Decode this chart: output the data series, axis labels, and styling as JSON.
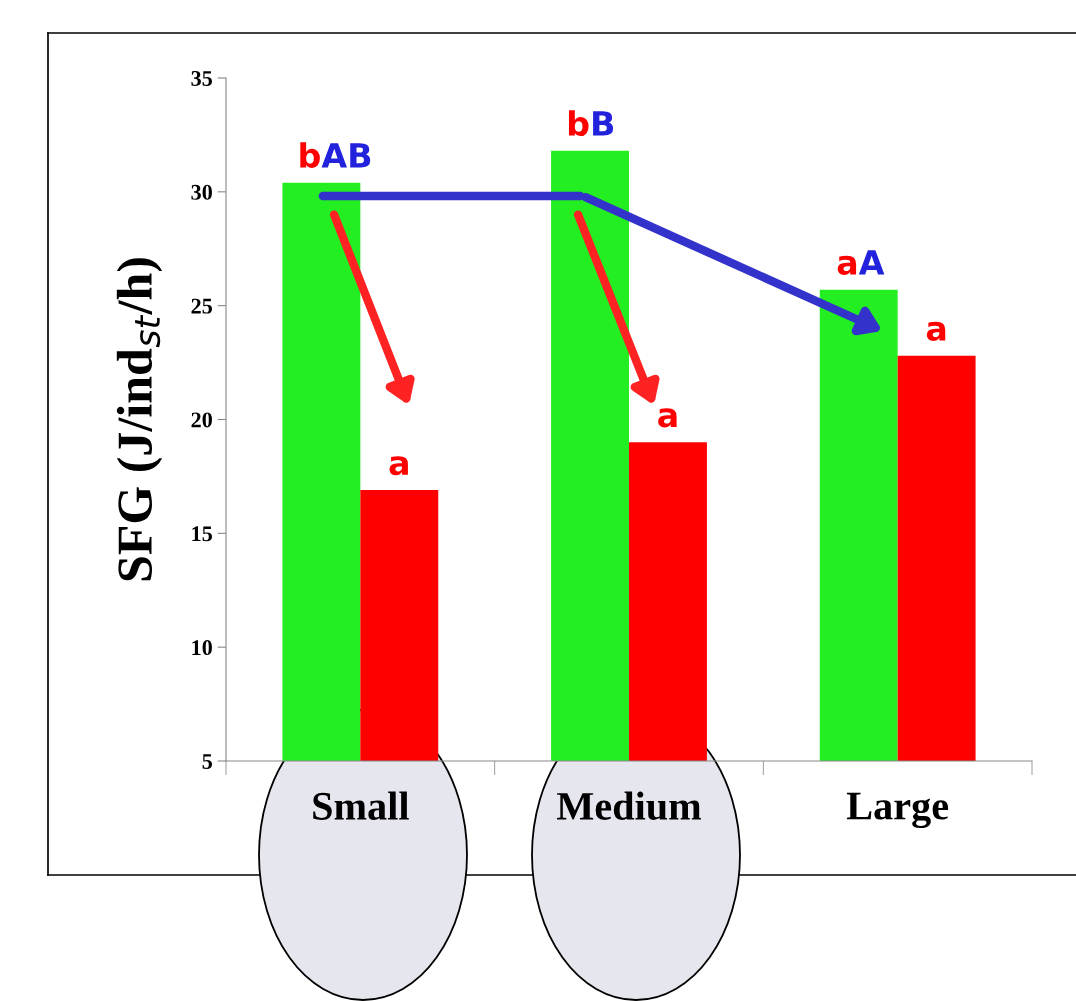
{
  "chart_data": {
    "type": "bar",
    "ylabel": "SFG (J/ind$_{st}$/h)",
    "categories": [
      "Small",
      "Medium",
      "Large"
    ],
    "series": [
      {
        "color": "#22ee22",
        "values": [
          30.4,
          31.8,
          25.7
        ],
        "value_labels": [
          "bAB",
          "bB",
          "aA"
        ]
      },
      {
        "color": "#ff0000",
        "values": [
          16.9,
          19.0,
          22.8
        ],
        "value_labels": [
          "a",
          "a",
          "a"
        ]
      }
    ],
    "ylim": [
      5,
      35
    ],
    "yticks": [
      5,
      10,
      15,
      20,
      25,
      30,
      35
    ],
    "grid": false,
    "legend": false
  }
}
